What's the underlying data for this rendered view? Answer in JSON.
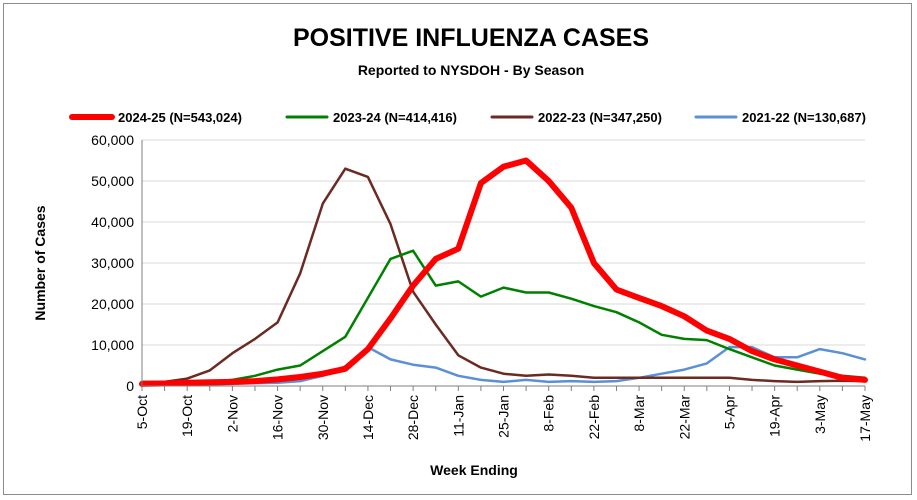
{
  "chart_data": {
    "type": "line",
    "title": "POSITIVE INFLUENZA CASES",
    "subtitle": "Reported to NYSDOH - By Season",
    "xlabel": "Week Ending",
    "ylabel": "Number of Cases",
    "ylim": [
      0,
      60000
    ],
    "y_ticks": [
      "0",
      "10,000",
      "20,000",
      "30,000",
      "40,000",
      "50,000",
      "60,000"
    ],
    "x": [
      "5-Oct",
      "12-Oct",
      "19-Oct",
      "26-Oct",
      "2-Nov",
      "9-Nov",
      "16-Nov",
      "23-Nov",
      "30-Nov",
      "7-Dec",
      "14-Dec",
      "21-Dec",
      "28-Dec",
      "4-Jan",
      "11-Jan",
      "18-Jan",
      "25-Jan",
      "1-Feb",
      "8-Feb",
      "15-Feb",
      "22-Feb",
      "1-Mar",
      "8-Mar",
      "15-Mar",
      "22-Mar",
      "29-Mar",
      "5-Apr",
      "12-Apr",
      "19-Apr",
      "26-Apr",
      "3-May",
      "10-May",
      "17-May"
    ],
    "x_tick_labels": [
      "5-Oct",
      "19-Oct",
      "2-Nov",
      "16-Nov",
      "30-Nov",
      "14-Dec",
      "28-Dec",
      "11-Jan",
      "25-Jan",
      "8-Feb",
      "22-Feb",
      "8-Mar",
      "22-Mar",
      "5-Apr",
      "19-Apr",
      "3-May",
      "17-May"
    ],
    "legend_position": "top",
    "grid": true,
    "series": [
      {
        "name": "2024-25 (N=543,024)",
        "color": "#ff0000",
        "values": [
          500,
          600,
          800,
          900,
          1000,
          1200,
          1600,
          2200,
          3000,
          4200,
          9000,
          16500,
          24500,
          31000,
          33500,
          49500,
          53500,
          55000,
          50000,
          43500,
          30000,
          23500,
          21500,
          19500,
          17000,
          13500,
          11500,
          8500,
          6500,
          5000,
          3500,
          2000,
          1500
        ]
      },
      {
        "name": "2023-24 (N=414,416)",
        "color": "#008000",
        "values": [
          500,
          600,
          800,
          1000,
          1500,
          2500,
          4000,
          5000,
          8500,
          12000,
          21500,
          31000,
          33000,
          24500,
          25500,
          21800,
          24000,
          22800,
          22800,
          21300,
          19500,
          18000,
          15500,
          12500,
          11500,
          11200,
          9000,
          7000,
          5000,
          4000,
          3000,
          2500,
          2000
        ]
      },
      {
        "name": "2022-23 (N=347,250)",
        "color": "#6b2a22",
        "values": [
          1000,
          1000,
          1800,
          3800,
          8000,
          11500,
          15500,
          27500,
          44500,
          53000,
          51000,
          39500,
          23000,
          15000,
          7500,
          4500,
          3000,
          2500,
          2800,
          2500,
          2000,
          2000,
          2000,
          2000,
          2000,
          2000,
          2000,
          1500,
          1200,
          1000,
          1200,
          1300,
          1200
        ]
      },
      {
        "name": "2021-22 (N=130,687)",
        "color": "#5b8fd6",
        "values": [
          200,
          200,
          300,
          400,
          500,
          700,
          800,
          1200,
          2500,
          4800,
          9500,
          6500,
          5200,
          4500,
          2500,
          1500,
          1000,
          1500,
          1000,
          1200,
          1000,
          1200,
          2000,
          3000,
          4000,
          5500,
          9500,
          9500,
          7000,
          7000,
          9000,
          8000,
          6500
        ]
      }
    ]
  }
}
